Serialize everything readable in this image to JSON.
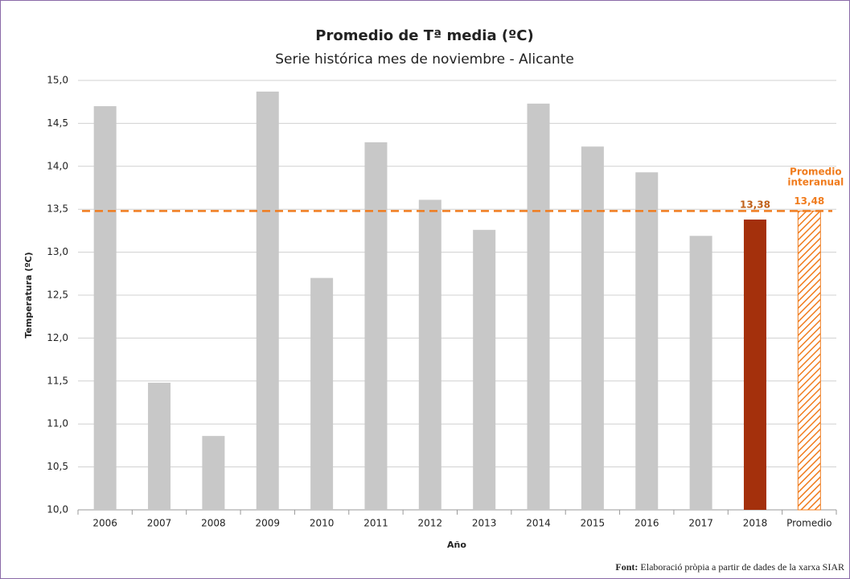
{
  "chart_data": {
    "type": "bar",
    "title": "Promedio de Tª media (ºC)",
    "subtitle": "Serie histórica mes de noviembre - Alicante",
    "y_label": "Temperatura (ºC)",
    "x_label": "Año",
    "categories": [
      "2006",
      "2007",
      "2008",
      "2009",
      "2010",
      "2011",
      "2012",
      "2013",
      "2014",
      "2015",
      "2016",
      "2017",
      "2018",
      "Promedio"
    ],
    "values": [
      14.7,
      11.48,
      10.86,
      14.87,
      12.7,
      14.28,
      13.61,
      13.26,
      14.73,
      14.23,
      13.93,
      13.19,
      13.38,
      13.48
    ],
    "value_labels": [
      null,
      null,
      null,
      null,
      null,
      null,
      null,
      null,
      null,
      null,
      null,
      null,
      "13,38",
      "13,48"
    ],
    "colors": [
      "#c8c8c8",
      "#c8c8c8",
      "#c8c8c8",
      "#c8c8c8",
      "#c8c8c8",
      "#c8c8c8",
      "#c8c8c8",
      "#c8c8c8",
      "#c8c8c8",
      "#c8c8c8",
      "#c8c8c8",
      "#c8c8c8",
      "#a4300c",
      "#f07c1e"
    ],
    "hatched": [
      false,
      false,
      false,
      false,
      false,
      false,
      false,
      false,
      false,
      false,
      false,
      false,
      false,
      true
    ],
    "annotation": [
      "Promedio",
      "interanual"
    ],
    "ylim": [
      10,
      15
    ],
    "yticks": [
      {
        "value": 10,
        "label": "10,0"
      },
      {
        "value": 10.5,
        "label": "10,5"
      },
      {
        "value": 11,
        "label": "11,0"
      },
      {
        "value": 11.5,
        "label": "11,5"
      },
      {
        "value": 12,
        "label": "12,0"
      },
      {
        "value": 12.5,
        "label": "12,5"
      },
      {
        "value": 13,
        "label": "13,0"
      },
      {
        "value": 13.5,
        "label": "13,5"
      },
      {
        "value": 14,
        "label": "14,0"
      },
      {
        "value": 14.5,
        "label": "14,5"
      },
      {
        "value": 15,
        "label": "15,0"
      }
    ],
    "grid": true
  },
  "source": {
    "label": "Font:",
    "text": " Elaboració pròpia a partir de dades de la xarxa SIAR"
  }
}
